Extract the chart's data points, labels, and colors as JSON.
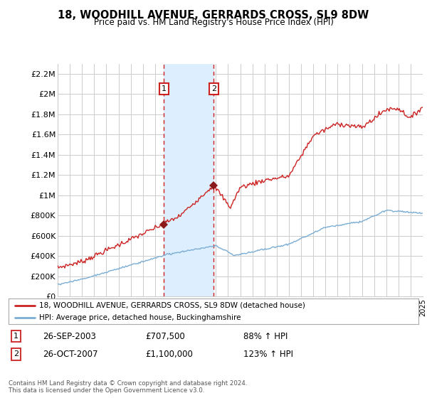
{
  "title": "18, WOODHILL AVENUE, GERRARDS CROSS, SL9 8DW",
  "subtitle": "Price paid vs. HM Land Registry's House Price Index (HPI)",
  "legend_line1": "18, WOODHILL AVENUE, GERRARDS CROSS, SL9 8DW (detached house)",
  "legend_line2": "HPI: Average price, detached house, Buckinghamshire",
  "sale1_date": "26-SEP-2003",
  "sale1_price": "£707,500",
  "sale1_hpi": "88% ↑ HPI",
  "sale1_year": 2003.73,
  "sale1_value": 707500,
  "sale2_date": "26-OCT-2007",
  "sale2_price": "£1,100,000",
  "sale2_hpi": "123% ↑ HPI",
  "sale2_year": 2007.82,
  "sale2_value": 1100000,
  "hpi_line_color": "#7aadd4",
  "price_line_color": "#cc2222",
  "shade_color": "#ddeeff",
  "sale_marker_color": "#8b1a1a",
  "annotation_box_color": "#cc2222",
  "background_color": "#ffffff",
  "grid_color": "#cccccc",
  "ylim": [
    0,
    2300000
  ],
  "yticks": [
    0,
    200000,
    400000,
    600000,
    800000,
    1000000,
    1200000,
    1400000,
    1600000,
    1800000,
    2000000,
    2200000
  ],
  "ylabel_map": {
    "0": "£0",
    "200000": "£200K",
    "400000": "£400K",
    "600000": "£600K",
    "800000": "£800K",
    "1000000": "£1M",
    "1200000": "£1.2M",
    "1400000": "£1.4M",
    "1600000": "£1.6M",
    "1800000": "£1.8M",
    "2000000": "£2M",
    "2200000": "£2.2M"
  },
  "footer": "Contains HM Land Registry data © Crown copyright and database right 2024.\nThis data is licensed under the Open Government Licence v3.0.",
  "x_start_year": 1995,
  "x_end_year": 2025
}
